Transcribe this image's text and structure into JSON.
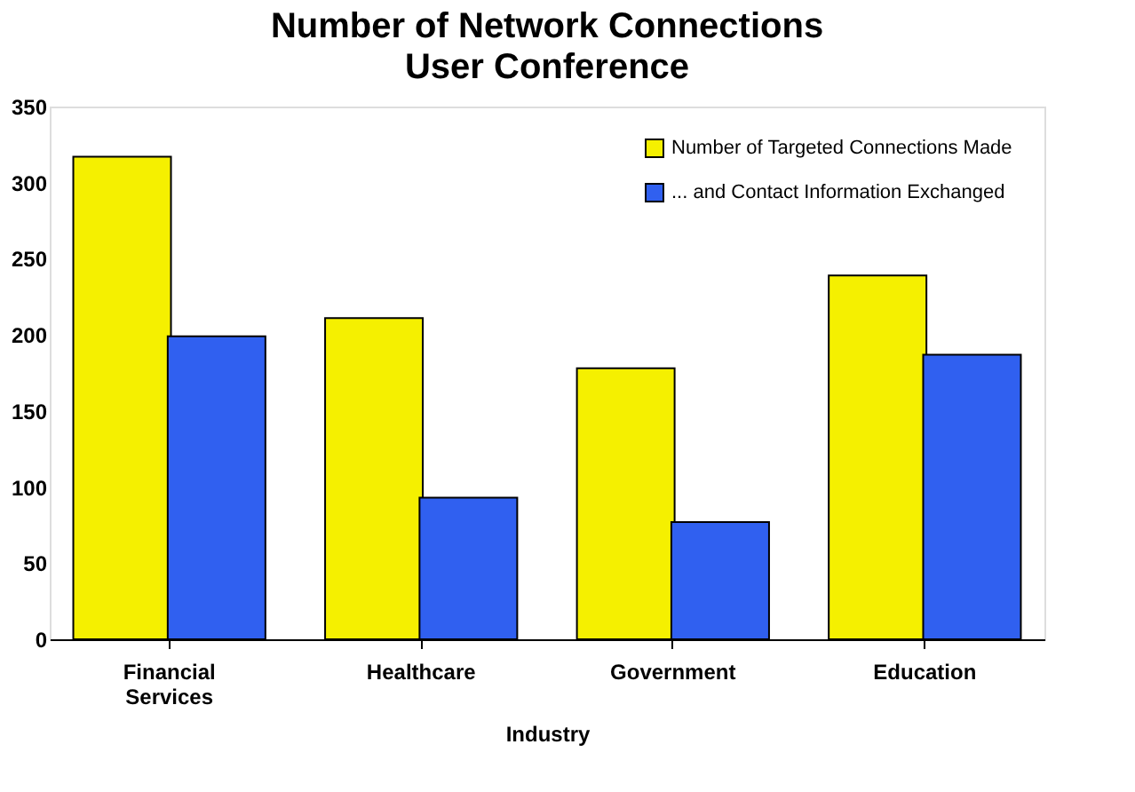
{
  "chart_data": {
    "type": "bar",
    "title": "Number of Network Connections",
    "subtitle": "User Conference",
    "xlabel": "Industry",
    "categories": [
      "Financial Services",
      "Healthcare",
      "Government",
      "Education"
    ],
    "series": [
      {
        "name": "Number of Targeted Connections Made",
        "color": "#f5f000",
        "values": [
          317,
          211,
          178,
          239
        ]
      },
      {
        "name": "... and Contact Information Exchanged",
        "color": "#3060f0",
        "values": [
          199,
          93,
          77,
          187
        ]
      }
    ],
    "ylim": [
      0,
      350
    ],
    "yticks": [
      0,
      50,
      100,
      150,
      200,
      250,
      300,
      350
    ],
    "grid": false,
    "legend": "top right"
  }
}
